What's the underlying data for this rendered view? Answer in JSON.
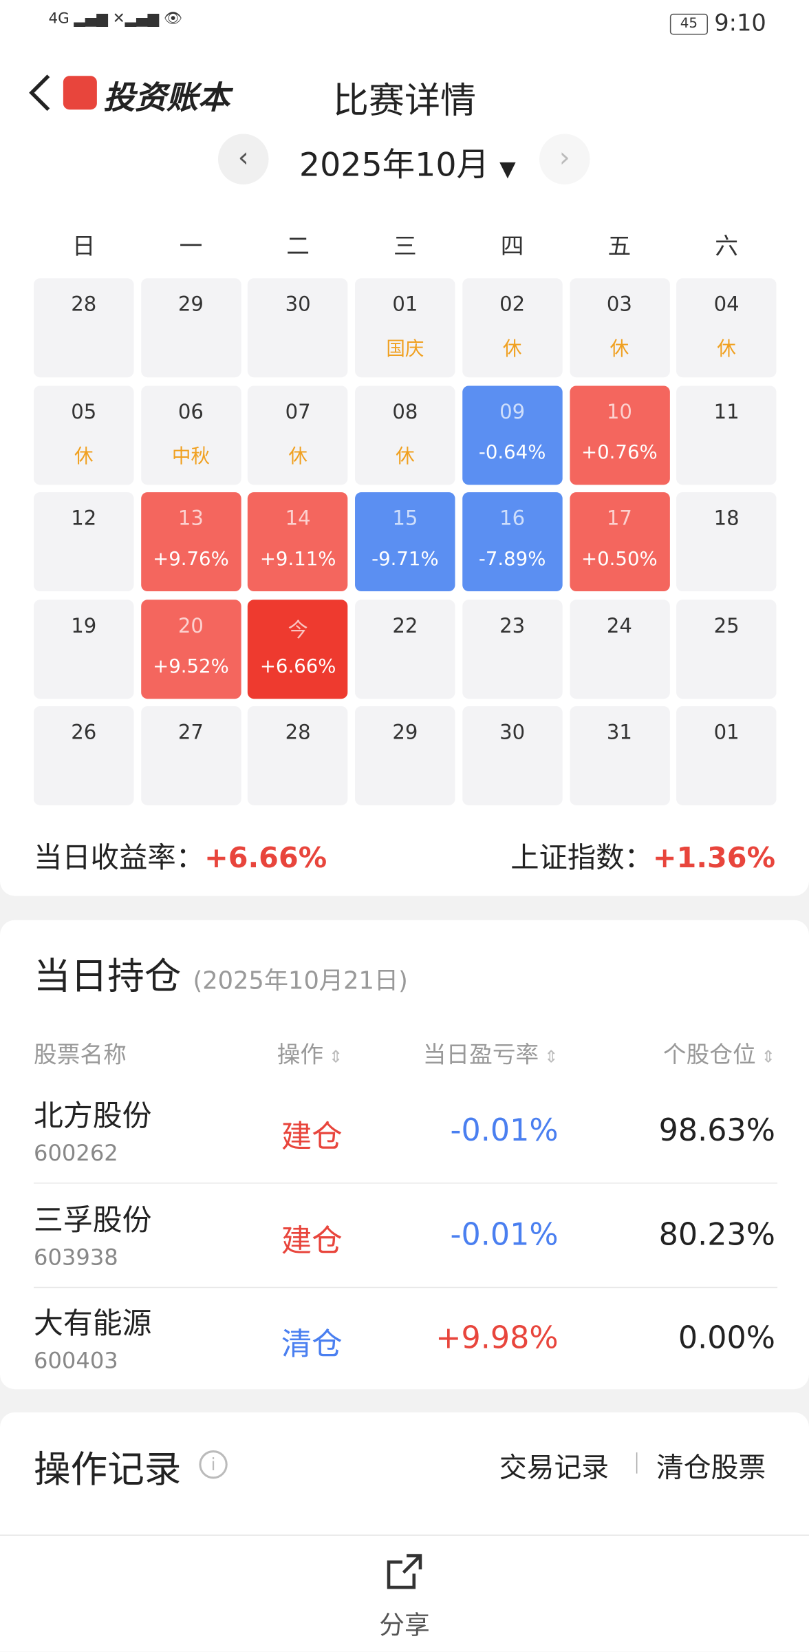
{
  "status_bar": {
    "time": "9:10",
    "battery": "45"
  },
  "header": {
    "logo": "投资账本",
    "title": "比赛详情"
  },
  "calendar": {
    "month": "2025年10月",
    "weekdays": [
      "日",
      "一",
      "二",
      "三",
      "四",
      "五",
      "六"
    ],
    "cells": [
      {
        "day": "28"
      },
      {
        "day": "29"
      },
      {
        "day": "30"
      },
      {
        "day": "01",
        "label": "国庆"
      },
      {
        "day": "02",
        "label": "休"
      },
      {
        "day": "03",
        "label": "休"
      },
      {
        "day": "04",
        "label": "休"
      },
      {
        "day": "05",
        "label": "休"
      },
      {
        "day": "06",
        "label": "中秋"
      },
      {
        "day": "07",
        "label": "休"
      },
      {
        "day": "08",
        "label": "休"
      },
      {
        "day": "09",
        "label": "-0.64%",
        "color": "#5b8ff2"
      },
      {
        "day": "10",
        "label": "+0.76%",
        "color": "#f4665e"
      },
      {
        "day": "11"
      },
      {
        "day": "12"
      },
      {
        "day": "13",
        "label": "+9.76%",
        "color": "#f4665e"
      },
      {
        "day": "14",
        "label": "+9.11%",
        "color": "#f4665e"
      },
      {
        "day": "15",
        "label": "-9.71%",
        "color": "#5b8ff2"
      },
      {
        "day": "16",
        "label": "-7.89%",
        "color": "#5b8ff2"
      },
      {
        "day": "17",
        "label": "+0.50%",
        "color": "#f4665e"
      },
      {
        "day": "18"
      },
      {
        "day": "19"
      },
      {
        "day": "20",
        "label": "+9.52%",
        "color": "#f4665e"
      },
      {
        "day": "今",
        "label": "+6.66%",
        "color": "#ee3a2f"
      },
      {
        "day": "22"
      },
      {
        "day": "23"
      },
      {
        "day": "24"
      },
      {
        "day": "25"
      },
      {
        "day": "26"
      },
      {
        "day": "27"
      },
      {
        "day": "28"
      },
      {
        "day": "29"
      },
      {
        "day": "30"
      },
      {
        "day": "31"
      },
      {
        "day": "01"
      }
    ]
  },
  "summary": {
    "daily_label": "当日收益率：",
    "daily_value": "+6.66%",
    "index_label": "上证指数：",
    "index_value": "+1.36%"
  },
  "holdings": {
    "title": "当日持仓",
    "date": "(2025年10月21日)",
    "columns": [
      "股票名称",
      "操作",
      "当日盈亏率",
      "个股仓位"
    ],
    "rows": [
      {
        "name": "北方股份",
        "code": "600262",
        "op": "建仓",
        "op_color": "#e8453c",
        "rate": "-0.01%",
        "rate_color": "#4a7ff0",
        "position": "98.63%"
      },
      {
        "name": "三孚股份",
        "code": "603938",
        "op": "建仓",
        "op_color": "#e8453c",
        "rate": "-0.01%",
        "rate_color": "#4a7ff0",
        "position": "80.23%"
      },
      {
        "name": "大有能源",
        "code": "600403",
        "op": "清仓",
        "op_color": "#4a7ff0",
        "rate": "+9.98%",
        "rate_color": "#e8453c",
        "position": "0.00%"
      }
    ]
  },
  "records": {
    "title": "操作记录",
    "tab_trades": "交易记录",
    "tab_cleared": "清仓股票"
  },
  "share": "分享"
}
